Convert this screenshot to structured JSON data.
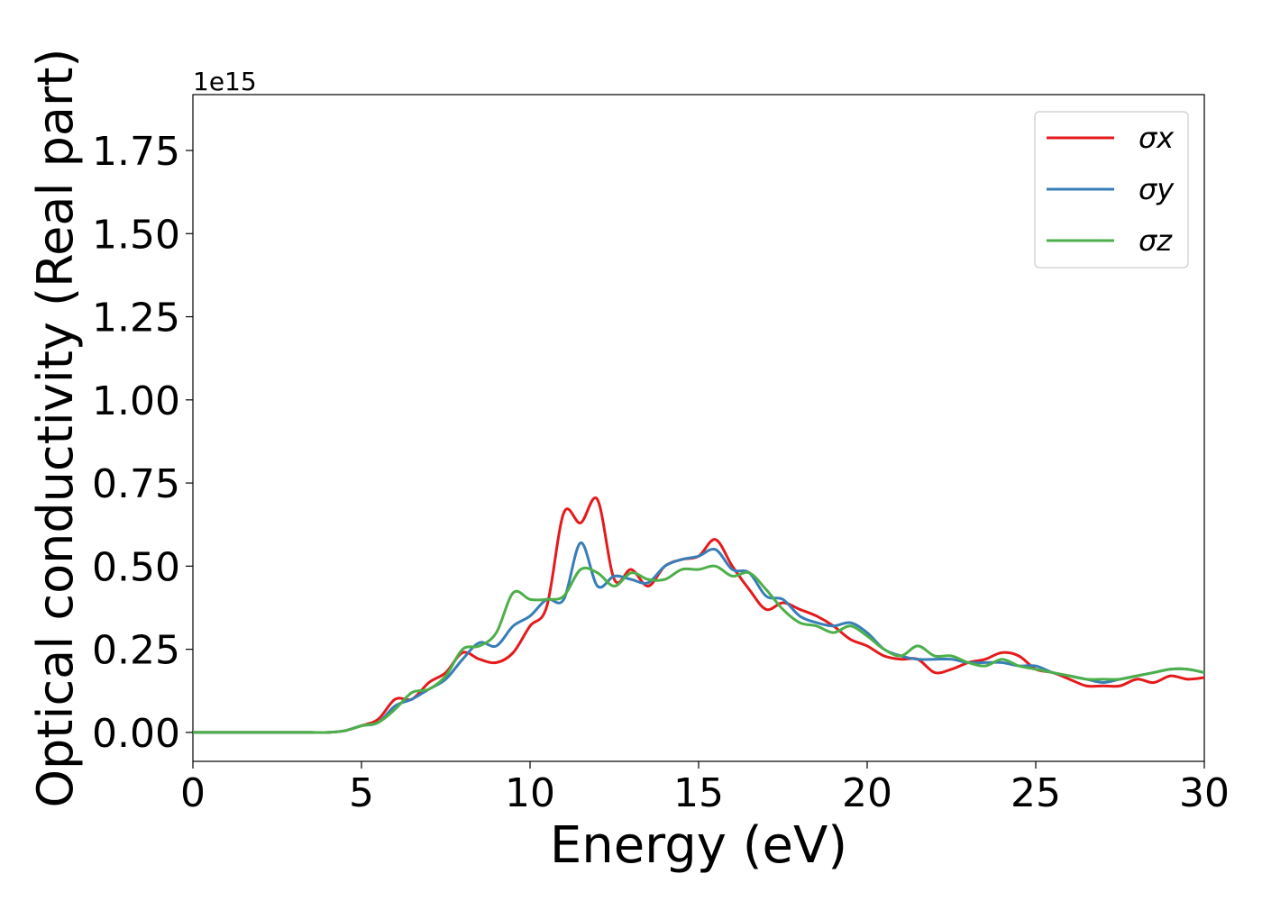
{
  "chart_data": {
    "type": "line",
    "xlabel": "Energy (eV)",
    "ylabel": "Optical conductivity (Real part)",
    "y_offset_label": "1e15",
    "x": [
      0,
      0.5,
      1,
      1.5,
      2,
      2.5,
      3,
      3.5,
      4,
      4.5,
      5,
      5.5,
      6,
      6.5,
      7,
      7.5,
      8,
      8.5,
      9,
      9.5,
      10,
      10.5,
      11,
      11.5,
      12,
      12.5,
      13,
      13.5,
      14,
      14.5,
      15,
      15.5,
      16,
      16.5,
      17,
      17.5,
      18,
      18.5,
      19,
      19.5,
      20,
      20.5,
      21,
      21.5,
      22,
      22.5,
      23,
      23.5,
      24,
      24.5,
      25,
      25.5,
      26,
      26.5,
      27,
      27.5,
      28,
      28.5,
      29,
      29.5,
      30
    ],
    "series": [
      {
        "name": "σx",
        "color": "#e41a1c",
        "values": [
          0,
          0,
          0,
          0,
          0,
          0,
          0,
          0,
          0,
          0.005,
          0.02,
          0.04,
          0.1,
          0.1,
          0.15,
          0.18,
          0.24,
          0.22,
          0.21,
          0.24,
          0.32,
          0.38,
          0.66,
          0.63,
          0.7,
          0.46,
          0.49,
          0.44,
          0.5,
          0.52,
          0.53,
          0.58,
          0.5,
          0.43,
          0.37,
          0.39,
          0.37,
          0.35,
          0.32,
          0.28,
          0.26,
          0.23,
          0.22,
          0.22,
          0.18,
          0.19,
          0.21,
          0.22,
          0.24,
          0.23,
          0.19,
          0.18,
          0.16,
          0.14,
          0.14,
          0.14,
          0.16,
          0.15,
          0.17,
          0.16,
          0.165
        ]
      },
      {
        "name": "σy",
        "color": "#377eb8",
        "values": [
          0,
          0,
          0,
          0,
          0,
          0,
          0,
          0,
          0,
          0.005,
          0.02,
          0.03,
          0.08,
          0.1,
          0.13,
          0.16,
          0.22,
          0.27,
          0.26,
          0.32,
          0.35,
          0.4,
          0.4,
          0.57,
          0.44,
          0.47,
          0.46,
          0.45,
          0.5,
          0.52,
          0.53,
          0.55,
          0.49,
          0.48,
          0.41,
          0.4,
          0.35,
          0.33,
          0.32,
          0.33,
          0.3,
          0.25,
          0.23,
          0.22,
          0.22,
          0.22,
          0.21,
          0.21,
          0.21,
          0.2,
          0.2,
          0.18,
          0.17,
          0.16,
          0.15,
          0.16,
          0.17,
          0.18,
          0.19,
          0.19,
          0.18
        ]
      },
      {
        "name": "σz",
        "color": "#4daf4a",
        "values": [
          0,
          0,
          0,
          0,
          0,
          0,
          0,
          0,
          0,
          0.005,
          0.02,
          0.03,
          0.07,
          0.12,
          0.13,
          0.17,
          0.25,
          0.26,
          0.3,
          0.42,
          0.4,
          0.4,
          0.41,
          0.49,
          0.48,
          0.44,
          0.48,
          0.46,
          0.46,
          0.49,
          0.49,
          0.5,
          0.47,
          0.48,
          0.43,
          0.37,
          0.33,
          0.32,
          0.3,
          0.32,
          0.29,
          0.25,
          0.23,
          0.26,
          0.23,
          0.23,
          0.21,
          0.2,
          0.22,
          0.2,
          0.19,
          0.18,
          0.17,
          0.16,
          0.16,
          0.16,
          0.17,
          0.18,
          0.19,
          0.19,
          0.18
        ]
      }
    ],
    "xlim": [
      0,
      30
    ],
    "xticks": [
      0,
      5,
      10,
      15,
      20,
      25,
      30
    ],
    "ylim": [
      -0.087,
      1.918
    ],
    "yticks": [
      {
        "value": 0,
        "label": "0.00"
      },
      {
        "value": 0.25,
        "label": "0.25"
      },
      {
        "value": 0.5,
        "label": "0.50"
      },
      {
        "value": 0.75,
        "label": "0.75"
      },
      {
        "value": 1,
        "label": "1.00"
      },
      {
        "value": 1.25,
        "label": "1.25"
      },
      {
        "value": 1.5,
        "label": "1.50"
      },
      {
        "value": 1.75,
        "label": "1.75"
      }
    ],
    "legend": "upper right",
    "grid": false
  }
}
